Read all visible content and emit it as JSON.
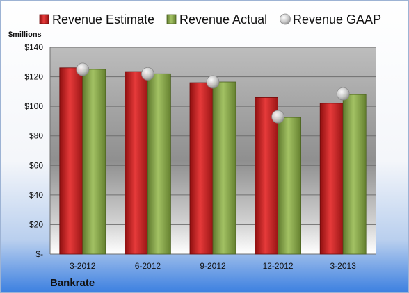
{
  "chart_data": {
    "type": "bar",
    "ylabel": "$millions",
    "company": "Bankrate",
    "categories": [
      "3-2012",
      "6-2012",
      "9-2012",
      "12-2012",
      "3-2013"
    ],
    "ylim": [
      0,
      140
    ],
    "yticks": [
      {
        "value": 0,
        "label": "$-"
      },
      {
        "value": 20,
        "label": "$20"
      },
      {
        "value": 40,
        "label": "$40"
      },
      {
        "value": 60,
        "label": "$60"
      },
      {
        "value": 80,
        "label": "$80"
      },
      {
        "value": 100,
        "label": "$100"
      },
      {
        "value": 120,
        "label": "$120"
      },
      {
        "value": 140,
        "label": "$140"
      }
    ],
    "grid": true,
    "legend_position": "top",
    "series": [
      {
        "name": "Revenue Estimate",
        "kind": "bar",
        "color": "#cc1f1f",
        "values": [
          126,
          123.5,
          116,
          106,
          102
        ]
      },
      {
        "name": "Revenue Actual",
        "kind": "bar",
        "color": "#8aa84e",
        "values": [
          125,
          122,
          116.5,
          92.5,
          108
        ]
      },
      {
        "name": "Revenue GAAP",
        "kind": "marker",
        "color": "#b8b8b8",
        "values": [
          125,
          122,
          116.5,
          93,
          108.5
        ]
      }
    ]
  }
}
